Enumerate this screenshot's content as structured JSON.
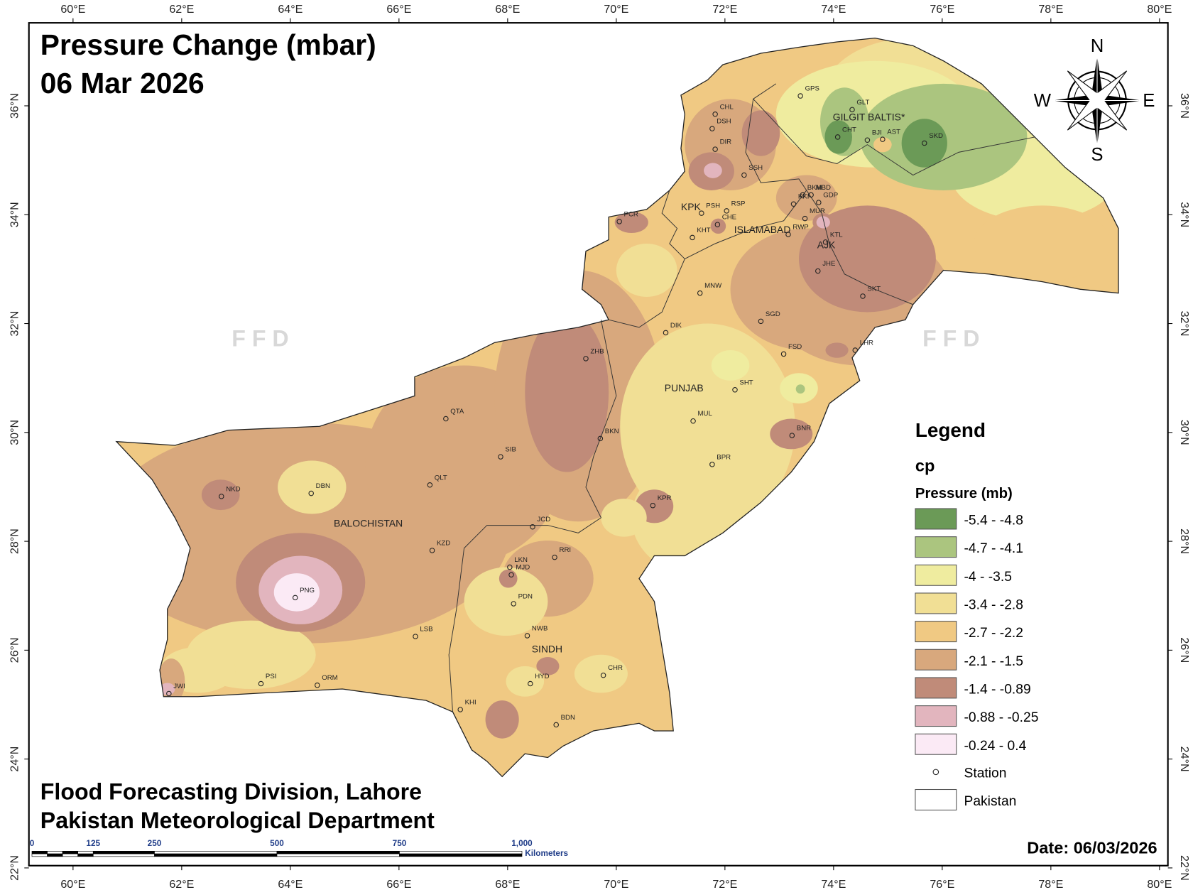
{
  "header": {
    "title": "Pressure Change (mbar)",
    "date_line": "06 Mar 2026"
  },
  "graticule": {
    "lon_labels": [
      "60°E",
      "62°E",
      "64°E",
      "66°E",
      "68°E",
      "70°E",
      "72°E",
      "74°E",
      "76°E",
      "78°E",
      "80°E"
    ],
    "lat_labels": [
      "22°N",
      "24°N",
      "26°N",
      "28°N",
      "30°N",
      "32°N",
      "34°N",
      "36°N"
    ]
  },
  "compass": {
    "north": "N",
    "east": "E",
    "south": "S",
    "west": "W"
  },
  "watermarks": [
    "F F D",
    "F F D"
  ],
  "regions": [
    "GILGIT BALTIS*",
    "KPK",
    "ISLAMABAD",
    "AJK",
    "PUNJAB",
    "BALOCHISTAN",
    "SINDH"
  ],
  "stations": [
    "GPS",
    "GLT",
    "CHT",
    "BJI",
    "AST",
    "SKD",
    "CHL",
    "DSH",
    "DIR",
    "SSH",
    "BKM",
    "MBD",
    "KKI",
    "GDP",
    "PSH",
    "RSP",
    "CHE",
    "MUR",
    "RWP",
    "PCR",
    "KTL",
    "KHT",
    "JHE",
    "MNW",
    "SKT",
    "SGD",
    "DIK",
    "LHR",
    "ZHB",
    "FSD",
    "SHT",
    "QTA",
    "MUL",
    "BKN",
    "BNR",
    "SIB",
    "BPR",
    "QLT",
    "NKD",
    "DBN",
    "KPR",
    "JCD",
    "KZD",
    "RRI",
    "LKN",
    "MJD",
    "PNG",
    "PDN",
    "LSB",
    "NWB",
    "CHR",
    "HYD",
    "PSI",
    "ORM",
    "JWI",
    "KHI",
    "BDN"
  ],
  "legend": {
    "title": "Legend",
    "layer": "cp",
    "field": "Pressure (mb)",
    "classes": [
      {
        "label": "-5.4 - -4.8",
        "color": "#6b9a57"
      },
      {
        "label": "-4.7 - -4.1",
        "color": "#abc57f"
      },
      {
        "label": "-4 - -3.5",
        "color": "#efec9f"
      },
      {
        "label": "-3.4 - -2.8",
        "color": "#f1df95"
      },
      {
        "label": "-2.7 - -2.2",
        "color": "#f0c983"
      },
      {
        "label": "-2.1 - -1.5",
        "color": "#d8a87d"
      },
      {
        "label": "-1.4 - -0.89",
        "color": "#c08b79"
      },
      {
        "label": "-0.88 - -0.25",
        "color": "#e2b5be"
      },
      {
        "label": "-0.24 - 0.4",
        "color": "#fbeaf5"
      }
    ],
    "station": "Station",
    "boundary": "Pakistan"
  },
  "credits": [
    "Flood Forecasting Division, Lahore",
    "Pakistan Meteorological Department"
  ],
  "footer_date": "Date: 06/03/2026",
  "scale_bar": {
    "labels": [
      "0",
      "125",
      "250",
      "500",
      "750",
      "1,000"
    ],
    "unit": "Kilometers"
  }
}
